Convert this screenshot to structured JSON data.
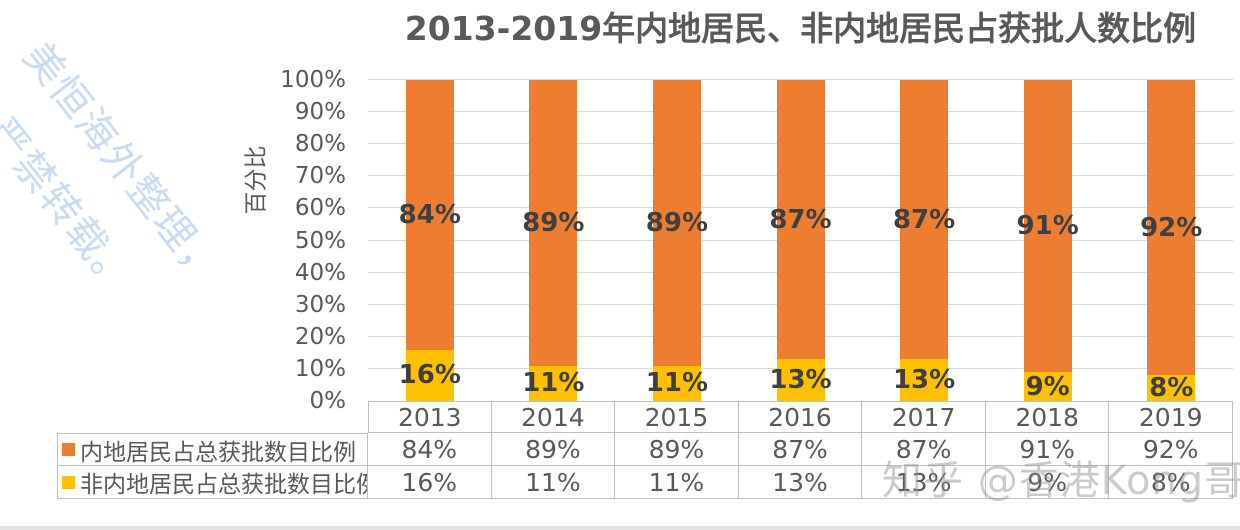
{
  "watermarks": {
    "diagonal_line1": "美恒海外整理，",
    "diagonal_line2": "严禁转载。",
    "corner": "知乎 @香港Kong哥"
  },
  "chart_data": {
    "type": "bar",
    "stacked": true,
    "title": "2013-2019年内地居民、非内地居民占获批人数比例",
    "ylabel": "百分比",
    "categories": [
      "2013",
      "2014",
      "2015",
      "2016",
      "2017",
      "2018",
      "2019"
    ],
    "series": [
      {
        "name": "内地居民占总获批数目比例",
        "color": "#ED7D31",
        "values": [
          84,
          89,
          89,
          87,
          87,
          91,
          92
        ]
      },
      {
        "name": "非内地居民占总获批数目比例",
        "color": "#FFC000",
        "values": [
          16,
          11,
          11,
          13,
          13,
          9,
          8
        ]
      }
    ],
    "stack_order_bottom_to_top": [
      1,
      0
    ],
    "ylim": [
      0,
      100
    ],
    "yticks": [
      "100%",
      "90%",
      "80%",
      "70%",
      "60%",
      "50%",
      "40%",
      "30%",
      "20%",
      "10%",
      "0%"
    ],
    "value_suffix": "%",
    "grid": true,
    "gridline_color": "#D9D9D9",
    "legend_position": "data-table-left",
    "data_table": true,
    "data_label_color": "#3F3F3F",
    "axis_text_color": "#595959"
  }
}
